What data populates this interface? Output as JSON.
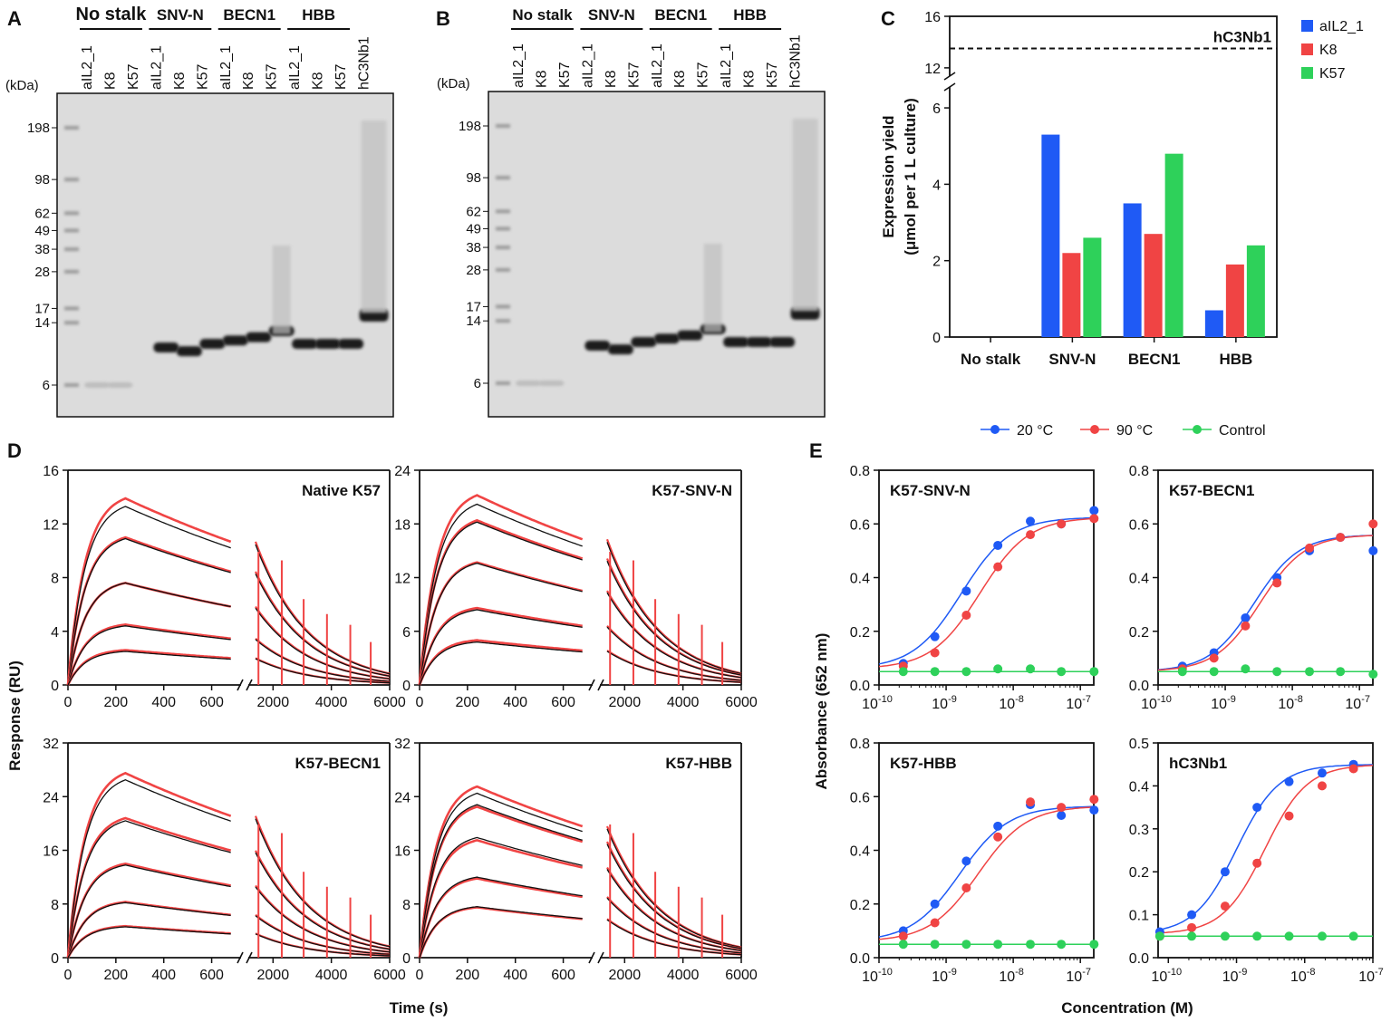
{
  "panel_labels": {
    "A": "A",
    "B": "B",
    "C": "C",
    "D": "D",
    "E": "E"
  },
  "colors": {
    "blue": "#1f5af5",
    "red": "#f04444",
    "green": "#2ed15a",
    "fit": "#111111",
    "gel": "#dcdcdc"
  },
  "gels": {
    "kda_label": "(kDa)",
    "groups": [
      "No stalk",
      "SNV-N",
      "BECN1",
      "HBB"
    ],
    "lanes": [
      "aIL2_1",
      "K8",
      "K57",
      "aIL2_1",
      "K8",
      "K57",
      "aIL2_1",
      "K8",
      "K57",
      "aIL2_1",
      "K8",
      "K57",
      "hC3Nb1"
    ],
    "markers": [
      "198",
      "98",
      "62",
      "49",
      "38",
      "28",
      "17",
      "14",
      "6"
    ],
    "marker_kda": [
      198,
      98,
      62,
      49,
      38,
      28,
      17,
      14,
      6
    ],
    "main_band_kda": [
      6,
      6,
      null,
      10,
      9.5,
      10.5,
      11,
      11.5,
      12.5,
      10.5,
      10.5,
      10.5,
      15.5
    ]
  },
  "chart_data": [
    {
      "id": "C",
      "type": "bar",
      "title": "",
      "xlabel": "",
      "ylabel": "Expression yield",
      "ylabel2": "(μmol per 1 L culture)",
      "categories": [
        "No stalk",
        "SNV-N",
        "BECN1",
        "HBB"
      ],
      "series": [
        {
          "name": "aIL2_1",
          "values": [
            0,
            5.3,
            3.5,
            0.7
          ]
        },
        {
          "name": "K8",
          "values": [
            0,
            2.2,
            2.7,
            1.9
          ]
        },
        {
          "name": "K57",
          "values": [
            0,
            2.6,
            4.8,
            2.4
          ]
        }
      ],
      "y_ticks_lower": [
        "0",
        "2",
        "4",
        "6"
      ],
      "y_ticks_upper": [
        "12",
        "16"
      ],
      "ylim_lower": [
        0,
        6.5
      ],
      "ylim_upper": [
        11.5,
        16
      ],
      "reference_line": {
        "label": "hC3Nb1",
        "value": 13.5
      }
    },
    {
      "id": "D",
      "type": "line",
      "xlabel": "Time (s)",
      "ylabel": "Response (RU)",
      "x_ticks_assoc": [
        "0",
        "200",
        "400",
        "600"
      ],
      "x_ticks_dissoc": [
        "2000",
        "4000",
        "6000"
      ],
      "panels": [
        {
          "name": "Native K57",
          "y_ticks": [
            "0",
            "4",
            "8",
            "12",
            "16"
          ],
          "ymax": 16,
          "peaks": [
            13.9,
            11,
            7.6,
            4.5,
            2.6
          ],
          "fit_peaks": [
            13.3,
            10.9,
            7.6,
            4.4,
            2.5
          ]
        },
        {
          "name": "K57-SNV-N",
          "y_ticks": [
            "0",
            "6",
            "12",
            "18",
            "24"
          ],
          "ymax": 24,
          "peaks": [
            21.2,
            18.4,
            13.7,
            8.6,
            5.0
          ],
          "fit_peaks": [
            20.2,
            18.2,
            13.6,
            8.4,
            4.8
          ]
        },
        {
          "name": "K57-BECN1",
          "y_ticks": [
            "0",
            "8",
            "16",
            "24",
            "32"
          ],
          "ymax": 32,
          "peaks": [
            27.5,
            20.8,
            14.0,
            8.3,
            4.7
          ],
          "fit_peaks": [
            26.5,
            20.4,
            13.8,
            8.2,
            4.6
          ]
        },
        {
          "name": "K57-HBB",
          "y_ticks": [
            "0",
            "8",
            "16",
            "24",
            "32"
          ],
          "ymax": 32,
          "peaks": [
            25.5,
            22.5,
            17.5,
            11.8,
            7.5
          ],
          "fit_peaks": [
            24.5,
            22.8,
            17.9,
            12.0,
            7.6
          ]
        }
      ]
    },
    {
      "id": "E",
      "type": "scatter",
      "xlabel": "Concentration (M)",
      "ylabel": "Absorbance (652 nm)",
      "legend": [
        "20 °C",
        "90 °C",
        "Control"
      ],
      "x_ticks": [
        "10",
        "10",
        "10",
        "10"
      ],
      "x_exps": [
        "-10",
        "-9",
        "-8",
        "-7"
      ],
      "panels": [
        {
          "name": "K57-SNV-N",
          "y_ticks": [
            "0.0",
            "0.2",
            "0.4",
            "0.6",
            "0.8"
          ],
          "ymax": 0.8,
          "x": [
            2.3e-10,
            6.8e-10,
            2e-09,
            5.9e-09,
            1.8e-08,
            5.2e-08,
            1.6e-07
          ],
          "s20": [
            0.08,
            0.18,
            0.35,
            0.52,
            0.61,
            0.6,
            0.65
          ],
          "s90": [
            0.07,
            0.12,
            0.26,
            0.44,
            0.56,
            0.6,
            0.62
          ],
          "ctrl": [
            0.05,
            0.05,
            0.05,
            0.06,
            0.06,
            0.05,
            0.05
          ],
          "fit20": {
            "bottom": 0.06,
            "top": 0.625,
            "ec50": 1.7e-09,
            "hill": 1.2
          },
          "fit90": {
            "bottom": 0.06,
            "top": 0.625,
            "ec50": 3.2e-09,
            "hill": 1.2
          }
        },
        {
          "name": "K57-BECN1",
          "y_ticks": [
            "0.0",
            "0.2",
            "0.4",
            "0.6",
            "0.8"
          ],
          "ymax": 0.8,
          "x": [
            2.3e-10,
            6.8e-10,
            2e-09,
            5.9e-09,
            1.8e-08,
            5.2e-08,
            1.6e-07
          ],
          "s20": [
            0.07,
            0.12,
            0.25,
            0.4,
            0.5,
            0.55,
            0.5
          ],
          "s90": [
            0.06,
            0.1,
            0.22,
            0.38,
            0.51,
            0.55,
            0.6
          ],
          "ctrl": [
            0.05,
            0.05,
            0.06,
            0.05,
            0.05,
            0.05,
            0.04
          ],
          "fit20": {
            "bottom": 0.05,
            "top": 0.56,
            "ec50": 2.7e-09,
            "hill": 1.3
          },
          "fit90": {
            "bottom": 0.05,
            "top": 0.56,
            "ec50": 3.3e-09,
            "hill": 1.3
          }
        },
        {
          "name": "K57-HBB",
          "y_ticks": [
            "0.0",
            "0.2",
            "0.4",
            "0.6",
            "0.8"
          ],
          "ymax": 0.8,
          "x": [
            2.3e-10,
            6.8e-10,
            2e-09,
            5.9e-09,
            1.8e-08,
            5.2e-08,
            1.6e-07
          ],
          "s20": [
            0.1,
            0.2,
            0.36,
            0.49,
            0.57,
            0.53,
            0.55
          ],
          "s90": [
            0.08,
            0.13,
            0.26,
            0.45,
            0.58,
            0.56,
            0.59
          ],
          "ctrl": [
            0.05,
            0.05,
            0.05,
            0.05,
            0.05,
            0.05,
            0.05
          ],
          "fit20": {
            "bottom": 0.06,
            "top": 0.565,
            "ec50": 1.6e-09,
            "hill": 1.2
          },
          "fit90": {
            "bottom": 0.06,
            "top": 0.565,
            "ec50": 3e-09,
            "hill": 1.2
          }
        },
        {
          "name": "hC3Nb1",
          "y_ticks": [
            "0.0",
            "0.1",
            "0.2",
            "0.3",
            "0.4",
            "0.5"
          ],
          "ymax": 0.5,
          "x": [
            7.5e-11,
            2.2e-10,
            6.8e-10,
            2e-09,
            5.9e-09,
            1.8e-08,
            5.2e-08
          ],
          "s20": [
            0.06,
            0.1,
            0.2,
            0.35,
            0.41,
            0.43,
            0.45
          ],
          "s90": [
            0.05,
            0.07,
            0.12,
            0.22,
            0.33,
            0.4,
            0.44
          ],
          "ctrl": [
            0.05,
            0.05,
            0.05,
            0.05,
            0.05,
            0.05,
            0.05
          ],
          "fit20": {
            "bottom": 0.055,
            "top": 0.45,
            "ec50": 1e-09,
            "hill": 1.4
          },
          "fit90": {
            "bottom": 0.055,
            "top": 0.45,
            "ec50": 2.6e-09,
            "hill": 1.4
          }
        }
      ]
    }
  ]
}
